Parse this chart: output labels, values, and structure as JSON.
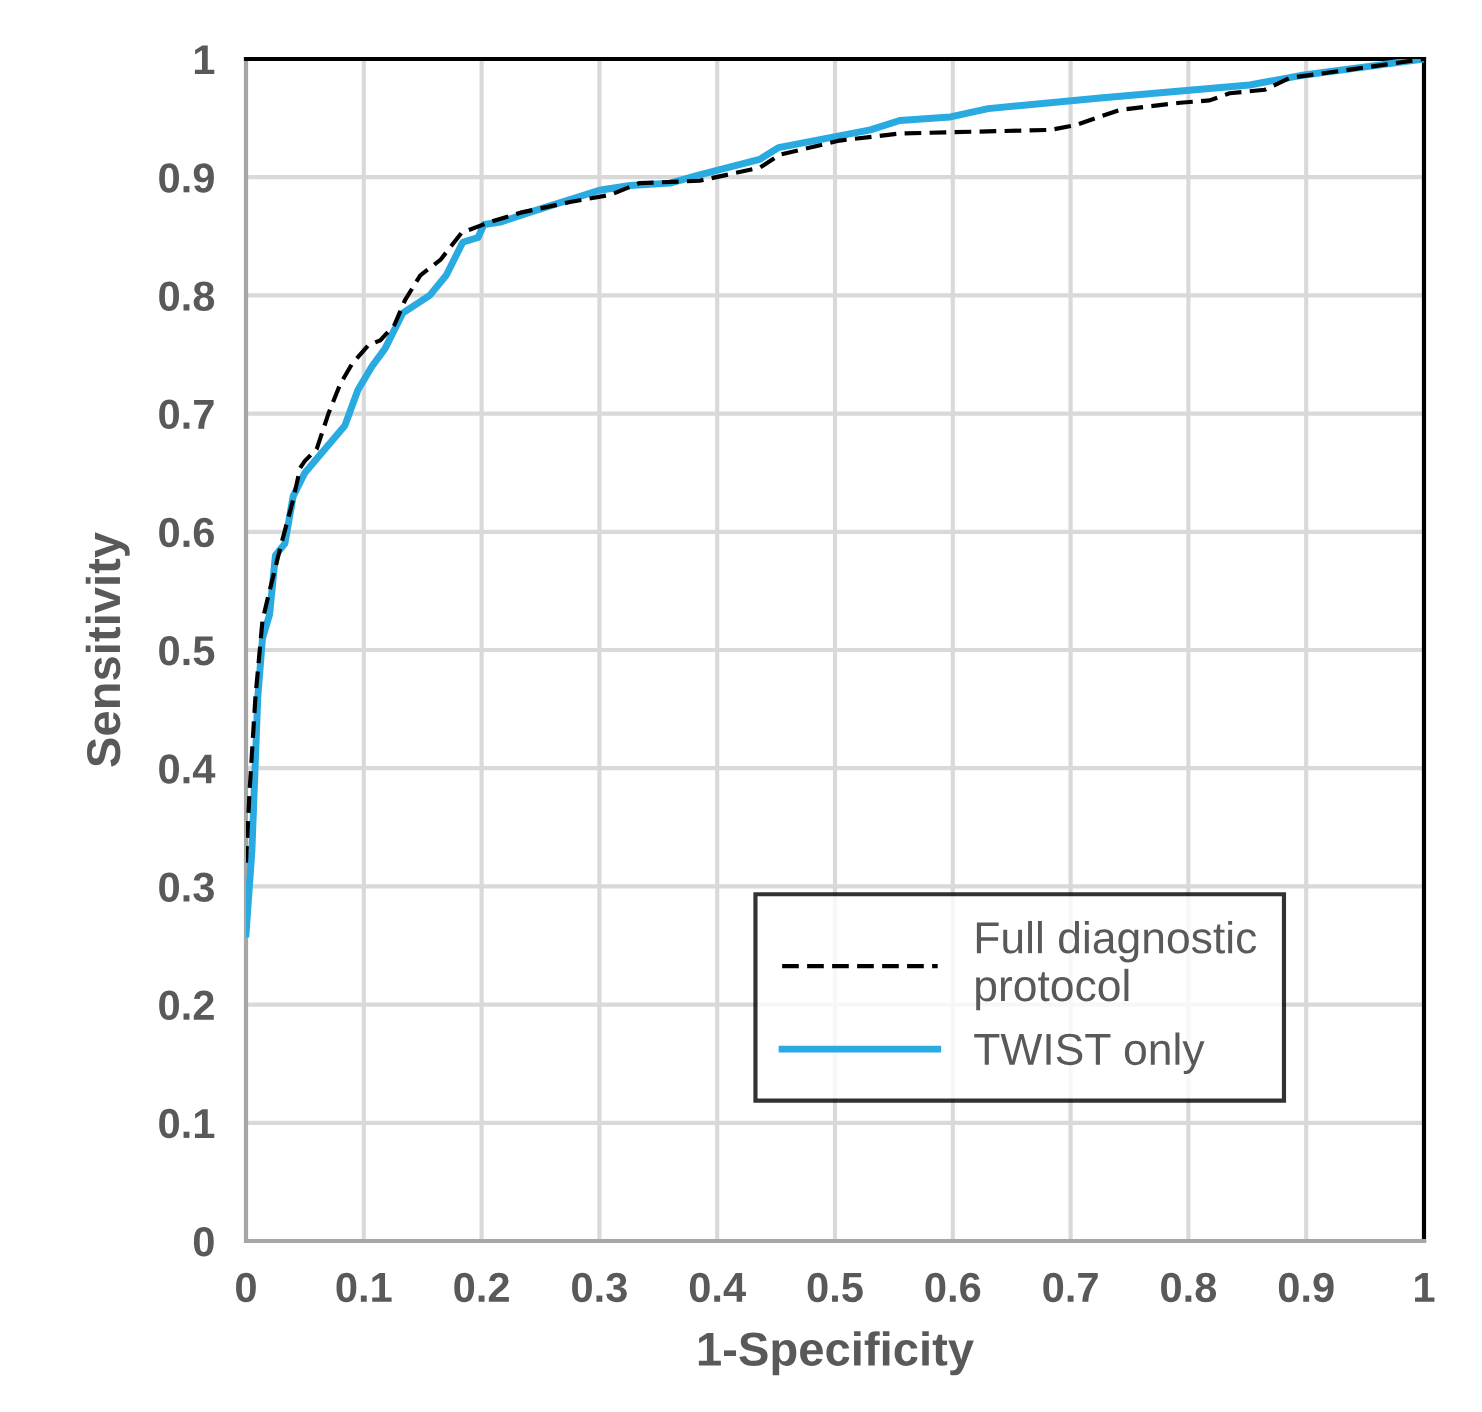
{
  "chart_data": {
    "type": "line",
    "xlabel": "1-Specificity",
    "ylabel": "Sensitivity",
    "xlim": [
      0,
      1
    ],
    "ylim": [
      0,
      1
    ],
    "xticks": [
      0,
      0.1,
      0.2,
      0.3,
      0.4,
      0.5,
      0.6,
      0.7,
      0.8,
      0.9,
      1
    ],
    "yticks": [
      0,
      0.1,
      0.2,
      0.3,
      0.4,
      0.5,
      0.6,
      0.7,
      0.8,
      0.9,
      1
    ],
    "grid": true,
    "legend": "bottom right",
    "series": [
      {
        "name": "Full diagnostic\nprotocol",
        "color": "#000000",
        "line_style": "dashed",
        "x": [
          0,
          0.003,
          0.008,
          0.014,
          0.02,
          0.03,
          0.04,
          0.046,
          0.05,
          0.06,
          0.07,
          0.08,
          0.09,
          0.104,
          0.114,
          0.126,
          0.135,
          0.148,
          0.165,
          0.183,
          0.207,
          0.233,
          0.275,
          0.309,
          0.334,
          0.385,
          0.436,
          0.453,
          0.504,
          0.555,
          0.683,
          0.704,
          0.742,
          0.793,
          0.818,
          0.835,
          0.865,
          0.886,
          0.937,
          1
        ],
        "values": [
          0.32,
          0.38,
          0.46,
          0.525,
          0.55,
          0.59,
          0.627,
          0.654,
          0.66,
          0.67,
          0.7,
          0.725,
          0.742,
          0.758,
          0.762,
          0.775,
          0.796,
          0.817,
          0.83,
          0.853,
          0.862,
          0.87,
          0.879,
          0.885,
          0.895,
          0.897,
          0.908,
          0.919,
          0.931,
          0.937,
          0.94,
          0.944,
          0.957,
          0.963,
          0.965,
          0.971,
          0.974,
          0.984,
          0.991,
          1
        ]
      },
      {
        "name": "TWIST only",
        "color": "#29abe2",
        "line_style": "solid",
        "x": [
          0,
          0.005,
          0.01,
          0.014,
          0.02,
          0.025,
          0.033,
          0.04,
          0.05,
          0.084,
          0.095,
          0.107,
          0.118,
          0.133,
          0.156,
          0.17,
          0.184,
          0.197,
          0.202,
          0.216,
          0.24,
          0.3,
          0.326,
          0.36,
          0.385,
          0.436,
          0.452,
          0.53,
          0.555,
          0.598,
          0.63,
          0.725,
          0.852,
          0.895,
          0.963,
          1
        ],
        "values": [
          0.26,
          0.33,
          0.46,
          0.51,
          0.53,
          0.58,
          0.59,
          0.63,
          0.65,
          0.69,
          0.72,
          0.74,
          0.755,
          0.785,
          0.8,
          0.817,
          0.845,
          0.849,
          0.86,
          0.862,
          0.87,
          0.889,
          0.893,
          0.895,
          0.902,
          0.915,
          0.925,
          0.94,
          0.948,
          0.951,
          0.958,
          0.967,
          0.978,
          0.986,
          0.995,
          1
        ]
      }
    ]
  }
}
